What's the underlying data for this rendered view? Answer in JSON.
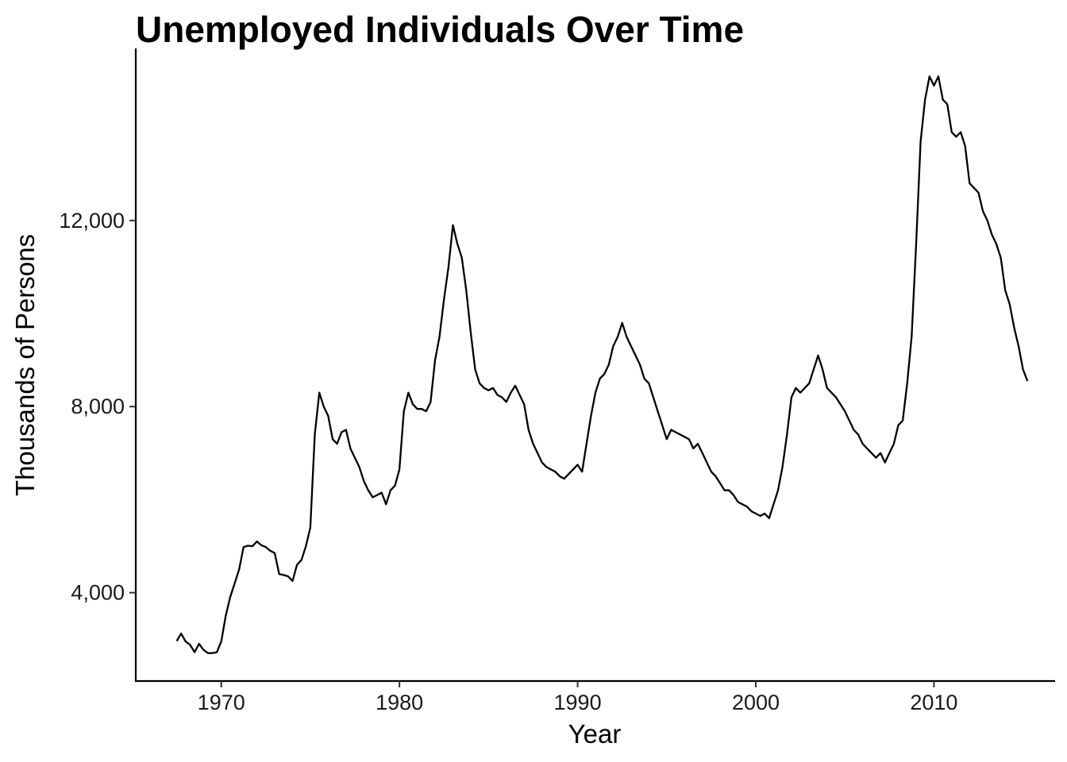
{
  "chart_data": {
    "type": "line",
    "title": "Unemployed Individuals Over Time",
    "xlabel": "Year",
    "ylabel": "Thousands of Persons",
    "xlim": [
      1965.2,
      2016.8
    ],
    "ylim": [
      2100,
      15700
    ],
    "x_ticks": [
      1970,
      1980,
      1990,
      2000,
      2010
    ],
    "x_tick_labels": [
      "1970",
      "1980",
      "1990",
      "2000",
      "2010"
    ],
    "y_ticks": [
      4000,
      8000,
      12000
    ],
    "y_tick_labels": [
      "4,000",
      "8,000",
      "12,000"
    ],
    "grid": false,
    "line_color": "#000000",
    "series": [
      {
        "points": [
          [
            1967.5,
            2960
          ],
          [
            1967.75,
            3120
          ],
          [
            1968.0,
            2950
          ],
          [
            1968.25,
            2880
          ],
          [
            1968.5,
            2720
          ],
          [
            1968.75,
            2900
          ],
          [
            1969.0,
            2770
          ],
          [
            1969.25,
            2700
          ],
          [
            1969.5,
            2700
          ],
          [
            1969.75,
            2720
          ],
          [
            1970.0,
            2950
          ],
          [
            1970.25,
            3500
          ],
          [
            1970.5,
            3900
          ],
          [
            1970.75,
            4200
          ],
          [
            1971.0,
            4500
          ],
          [
            1971.25,
            4980
          ],
          [
            1971.5,
            5010
          ],
          [
            1971.75,
            5000
          ],
          [
            1972.0,
            5100
          ],
          [
            1972.25,
            5020
          ],
          [
            1972.5,
            4980
          ],
          [
            1972.75,
            4900
          ],
          [
            1973.0,
            4850
          ],
          [
            1973.25,
            4400
          ],
          [
            1973.5,
            4380
          ],
          [
            1973.75,
            4350
          ],
          [
            1974.0,
            4250
          ],
          [
            1974.25,
            4600
          ],
          [
            1974.5,
            4700
          ],
          [
            1974.75,
            5000
          ],
          [
            1975.0,
            5400
          ],
          [
            1975.25,
            7400
          ],
          [
            1975.5,
            8300
          ],
          [
            1975.75,
            8000
          ],
          [
            1976.0,
            7800
          ],
          [
            1976.25,
            7300
          ],
          [
            1976.5,
            7200
          ],
          [
            1976.75,
            7450
          ],
          [
            1977.0,
            7500
          ],
          [
            1977.25,
            7100
          ],
          [
            1977.5,
            6900
          ],
          [
            1977.75,
            6700
          ],
          [
            1978.0,
            6400
          ],
          [
            1978.25,
            6200
          ],
          [
            1978.5,
            6050
          ],
          [
            1978.75,
            6100
          ],
          [
            1979.0,
            6150
          ],
          [
            1979.25,
            5900
          ],
          [
            1979.5,
            6200
          ],
          [
            1979.75,
            6300
          ],
          [
            1980.0,
            6650
          ],
          [
            1980.25,
            7900
          ],
          [
            1980.5,
            8300
          ],
          [
            1980.75,
            8050
          ],
          [
            1981.0,
            7950
          ],
          [
            1981.25,
            7950
          ],
          [
            1981.5,
            7900
          ],
          [
            1981.75,
            8100
          ],
          [
            1982.0,
            9000
          ],
          [
            1982.25,
            9500
          ],
          [
            1982.5,
            10300
          ],
          [
            1982.75,
            11000
          ],
          [
            1983.0,
            11900
          ],
          [
            1983.25,
            11500
          ],
          [
            1983.5,
            11200
          ],
          [
            1983.75,
            10500
          ],
          [
            1984.0,
            9600
          ],
          [
            1984.25,
            8800
          ],
          [
            1984.5,
            8500
          ],
          [
            1984.75,
            8400
          ],
          [
            1985.0,
            8350
          ],
          [
            1985.25,
            8400
          ],
          [
            1985.5,
            8250
          ],
          [
            1985.75,
            8200
          ],
          [
            1986.0,
            8100
          ],
          [
            1986.25,
            8300
          ],
          [
            1986.5,
            8450
          ],
          [
            1986.75,
            8250
          ],
          [
            1987.0,
            8050
          ],
          [
            1987.25,
            7500
          ],
          [
            1987.5,
            7200
          ],
          [
            1987.75,
            7000
          ],
          [
            1988.0,
            6800
          ],
          [
            1988.25,
            6700
          ],
          [
            1988.5,
            6650
          ],
          [
            1988.75,
            6600
          ],
          [
            1989.0,
            6500
          ],
          [
            1989.25,
            6450
          ],
          [
            1989.5,
            6550
          ],
          [
            1989.75,
            6650
          ],
          [
            1990.0,
            6750
          ],
          [
            1990.25,
            6600
          ],
          [
            1990.5,
            7200
          ],
          [
            1990.75,
            7800
          ],
          [
            1991.0,
            8300
          ],
          [
            1991.25,
            8600
          ],
          [
            1991.5,
            8700
          ],
          [
            1991.75,
            8900
          ],
          [
            1992.0,
            9300
          ],
          [
            1992.25,
            9500
          ],
          [
            1992.5,
            9800
          ],
          [
            1992.75,
            9500
          ],
          [
            1993.0,
            9300
          ],
          [
            1993.25,
            9100
          ],
          [
            1993.5,
            8900
          ],
          [
            1993.75,
            8600
          ],
          [
            1994.0,
            8500
          ],
          [
            1994.25,
            8200
          ],
          [
            1994.5,
            7900
          ],
          [
            1994.75,
            7600
          ],
          [
            1995.0,
            7300
          ],
          [
            1995.25,
            7500
          ],
          [
            1995.5,
            7450
          ],
          [
            1995.75,
            7400
          ],
          [
            1996.0,
            7350
          ],
          [
            1996.25,
            7300
          ],
          [
            1996.5,
            7100
          ],
          [
            1996.75,
            7200
          ],
          [
            1997.0,
            7000
          ],
          [
            1997.25,
            6800
          ],
          [
            1997.5,
            6600
          ],
          [
            1997.75,
            6500
          ],
          [
            1998.0,
            6350
          ],
          [
            1998.25,
            6200
          ],
          [
            1998.5,
            6200
          ],
          [
            1998.75,
            6100
          ],
          [
            1999.0,
            5950
          ],
          [
            1999.25,
            5900
          ],
          [
            1999.5,
            5850
          ],
          [
            1999.75,
            5750
          ],
          [
            2000.0,
            5700
          ],
          [
            2000.25,
            5650
          ],
          [
            2000.5,
            5700
          ],
          [
            2000.75,
            5600
          ],
          [
            2001.0,
            5900
          ],
          [
            2001.25,
            6200
          ],
          [
            2001.5,
            6700
          ],
          [
            2001.75,
            7400
          ],
          [
            2002.0,
            8200
          ],
          [
            2002.25,
            8400
          ],
          [
            2002.5,
            8300
          ],
          [
            2002.75,
            8400
          ],
          [
            2003.0,
            8500
          ],
          [
            2003.25,
            8800
          ],
          [
            2003.5,
            9100
          ],
          [
            2003.75,
            8800
          ],
          [
            2004.0,
            8400
          ],
          [
            2004.25,
            8300
          ],
          [
            2004.5,
            8200
          ],
          [
            2004.75,
            8050
          ],
          [
            2005.0,
            7900
          ],
          [
            2005.25,
            7700
          ],
          [
            2005.5,
            7500
          ],
          [
            2005.75,
            7400
          ],
          [
            2006.0,
            7200
          ],
          [
            2006.25,
            7100
          ],
          [
            2006.5,
            7000
          ],
          [
            2006.75,
            6900
          ],
          [
            2007.0,
            7000
          ],
          [
            2007.25,
            6800
          ],
          [
            2007.5,
            7000
          ],
          [
            2007.75,
            7200
          ],
          [
            2008.0,
            7600
          ],
          [
            2008.25,
            7700
          ],
          [
            2008.5,
            8500
          ],
          [
            2008.75,
            9500
          ],
          [
            2009.0,
            11500
          ],
          [
            2009.25,
            13700
          ],
          [
            2009.5,
            14600
          ],
          [
            2009.75,
            15100
          ],
          [
            2010.0,
            14900
          ],
          [
            2010.25,
            15100
          ],
          [
            2010.5,
            14600
          ],
          [
            2010.75,
            14500
          ],
          [
            2011.0,
            13900
          ],
          [
            2011.25,
            13800
          ],
          [
            2011.5,
            13900
          ],
          [
            2011.75,
            13600
          ],
          [
            2012.0,
            12800
          ],
          [
            2012.25,
            12700
          ],
          [
            2012.5,
            12600
          ],
          [
            2012.75,
            12200
          ],
          [
            2013.0,
            12000
          ],
          [
            2013.25,
            11700
          ],
          [
            2013.5,
            11500
          ],
          [
            2013.75,
            11200
          ],
          [
            2014.0,
            10500
          ],
          [
            2014.25,
            10200
          ],
          [
            2014.5,
            9700
          ],
          [
            2014.75,
            9300
          ],
          [
            2015.0,
            8800
          ],
          [
            2015.25,
            8550
          ]
        ]
      }
    ]
  }
}
